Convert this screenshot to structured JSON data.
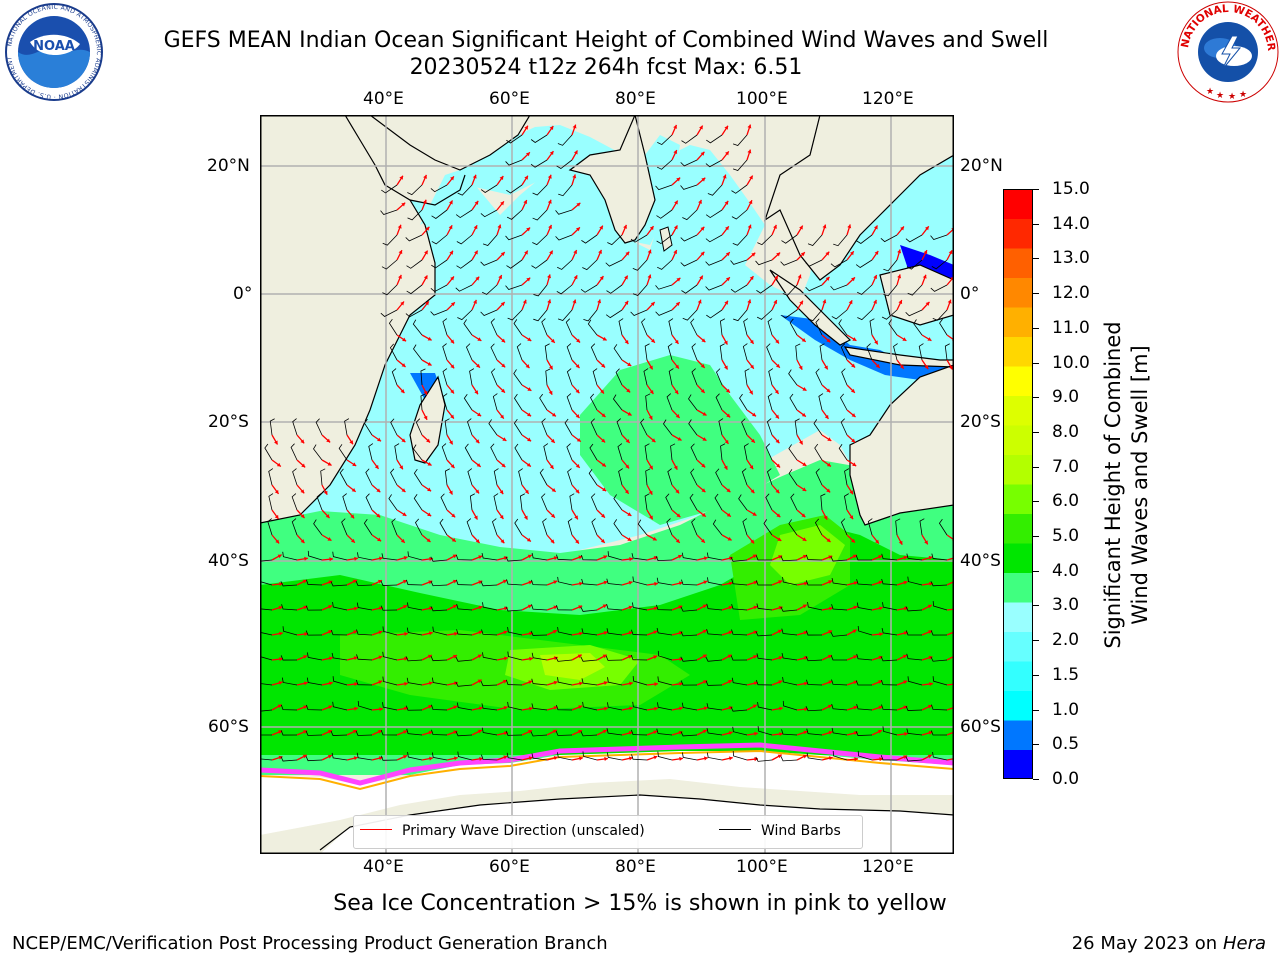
{
  "header": {
    "title_line1": "GEFS MEAN Indian Ocean Significant Height of Combined Wind Waves and Swell",
    "title_line2": "20230524 t12z 264h fcst   Max: 6.51"
  },
  "logos": {
    "left": {
      "name": "NOAA",
      "ring_text": "NATIONAL OCEANIC AND ATMOSPHERIC ADMINISTRATION · U.S. DEPARTMENT OF COMMERCE"
    },
    "right": {
      "name": "NATIONAL WEATHER SERVICE"
    }
  },
  "map": {
    "lon_labels_top": [
      "40°E",
      "60°E",
      "80°E",
      "100°E",
      "120°E"
    ],
    "lon_labels_bottom": [
      "40°E",
      "60°E",
      "80°E",
      "100°E",
      "120°E"
    ],
    "lat_labels_left": [
      "20°N",
      "0°",
      "20°S",
      "40°S",
      "60°S"
    ],
    "lat_labels_right": [
      "20°N",
      "0°",
      "20°S",
      "40°S",
      "60°S"
    ],
    "colors": {
      "land": "#efefdf",
      "coast": "#000000",
      "grid": "#b0b0b0",
      "arrows": "#ff0000",
      "barbs": "#000000"
    },
    "legend": {
      "wave_dir": "Primary Wave Direction (unscaled)",
      "barbs": "Wind Barbs"
    }
  },
  "colorbar": {
    "label_line1": "Significant Height of Combined",
    "label_line2": "Wind Waves and Swell [m]",
    "ticks": [
      "15.0",
      "14.0",
      "13.0",
      "12.0",
      "11.0",
      "10.0",
      "9.0",
      "8.0",
      "7.0",
      "6.0",
      "5.0",
      "4.0",
      "3.0",
      "2.0",
      "1.5",
      "1.0",
      "0.5",
      "0.0"
    ],
    "colors": [
      "#0000ff",
      "#0077ff",
      "#00ffff",
      "#33ffff",
      "#66ffff",
      "#99ffff",
      "#40ff80",
      "#00e600",
      "#33ee00",
      "#77ff00",
      "#b3ff00",
      "#ccff00",
      "#ddff00",
      "#ffff00",
      "#ffd700",
      "#ffb000",
      "#ff8800",
      "#ff6000",
      "#ff2800",
      "#ff0000"
    ]
  },
  "notes": {
    "sea_ice": "Sea Ice Concentration > 15% is shown in pink to yellow"
  },
  "footer": {
    "left": "NCEP/EMC/Verification Post Processing Product Generation Branch",
    "date": "26 May 2023 on",
    "host": "Hera"
  }
}
